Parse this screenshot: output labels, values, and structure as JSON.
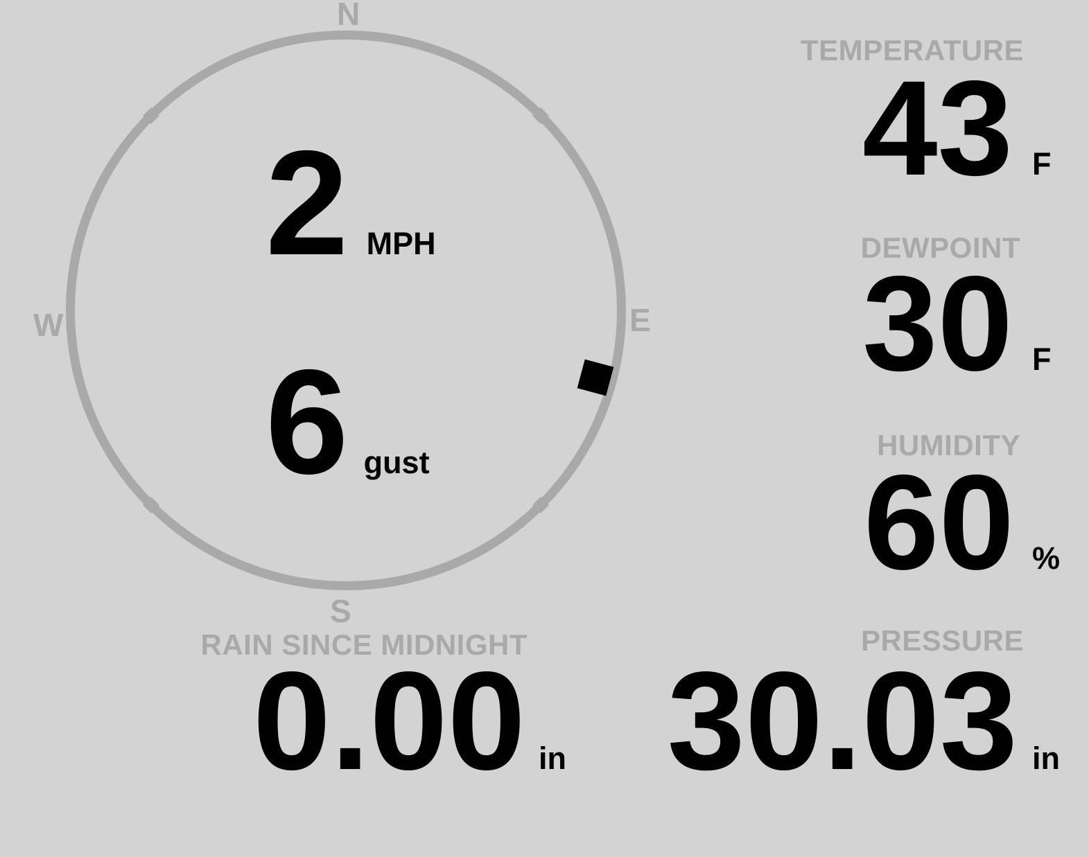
{
  "colors": {
    "background": "#d3d3d3",
    "muted_gray": "#a9a9a9",
    "value_black": "#010101"
  },
  "wind": {
    "compass": {
      "cardinals": {
        "n": "N",
        "e": "E",
        "s": "S",
        "w": "W"
      },
      "direction_deg": 105
    },
    "speed": {
      "value": "2",
      "unit": "MPH"
    },
    "gust": {
      "value": "6",
      "unit": "gust"
    }
  },
  "metrics": {
    "temperature": {
      "label": "TEMPERATURE",
      "value": "43",
      "unit": "F"
    },
    "dewpoint": {
      "label": "DEWPOINT",
      "value": "30",
      "unit": "F"
    },
    "humidity": {
      "label": "HUMIDITY",
      "value": "60",
      "unit": "%"
    },
    "rain": {
      "label": "RAIN SINCE MIDNIGHT",
      "value": "0.00",
      "unit": "in"
    },
    "pressure": {
      "label": "PRESSURE",
      "value": "30.03",
      "unit": "in"
    }
  }
}
